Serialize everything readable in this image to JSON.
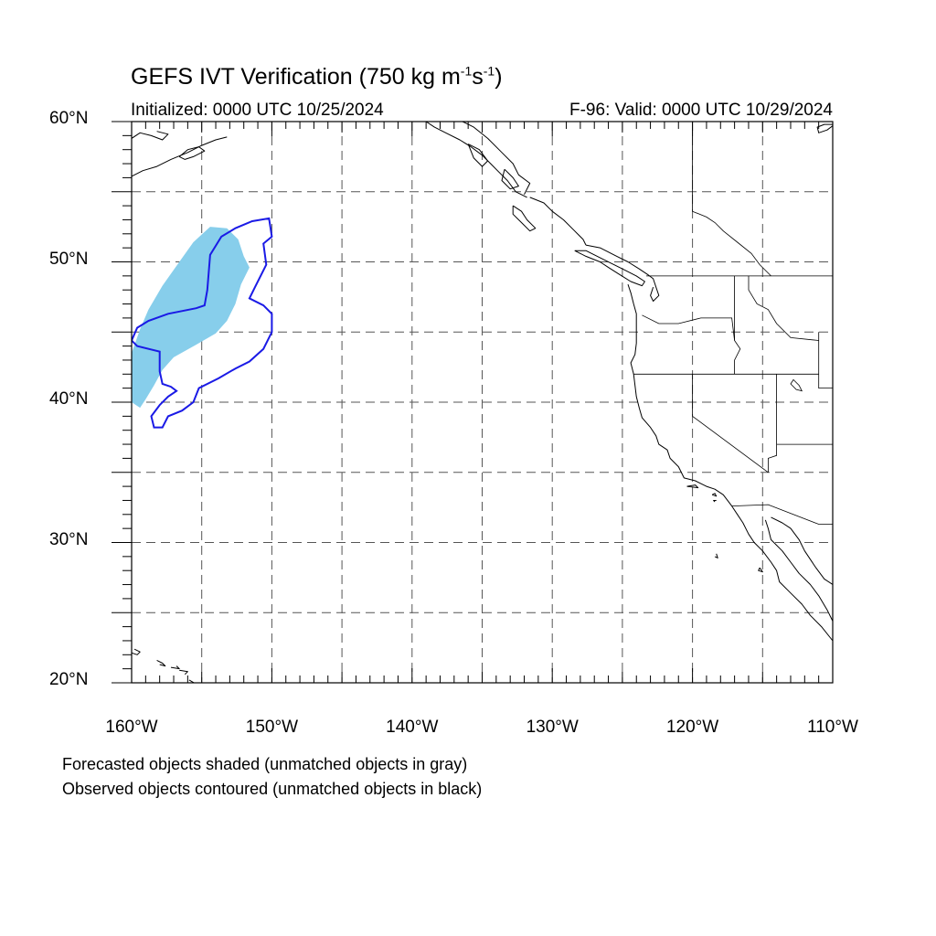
{
  "title": {
    "main": "GEFS IVT Verification (750 kg m",
    "exp1": "-1",
    "mid": "s",
    "exp2": "-1",
    "close": ")"
  },
  "subtitle_left": "Initialized: 0000 UTC 10/25/2024",
  "subtitle_right": "F-96: Valid: 0000 UTC 10/29/2024",
  "captions": [
    "Forecasted objects shaded (unmatched objects in gray)",
    "Observed objects contoured (unmatched objects in black)"
  ],
  "axes": {
    "lat_labels": [
      "60°N",
      "50°N",
      "40°N",
      "30°N",
      "20°N"
    ],
    "lon_labels": [
      "160°W",
      "150°W",
      "140°W",
      "130°W",
      "120°W",
      "110°W"
    ],
    "lat_values": [
      60,
      50,
      40,
      30,
      20
    ],
    "lon_values": [
      -160,
      -150,
      -140,
      -130,
      -120,
      -110
    ],
    "lat_range": [
      20,
      60
    ],
    "lon_range": [
      -160,
      -110
    ],
    "grid_step_deg": 5,
    "grid": "dashed"
  },
  "colors": {
    "forecast_fill": "#87ceeb",
    "observed_contour": "#1a1ae6",
    "coast": "#000000",
    "grid": "#555555"
  },
  "forecast_object": {
    "matched": true,
    "outline_lonlat": [
      [
        -154.4,
        52.5
      ],
      [
        -153.2,
        52.4
      ],
      [
        -152.4,
        51.6
      ],
      [
        -152.0,
        50.4
      ],
      [
        -151.6,
        49.6
      ],
      [
        -152.2,
        48.4
      ],
      [
        -152.6,
        47.0
      ],
      [
        -153.2,
        45.8
      ],
      [
        -154.0,
        44.9
      ],
      [
        -155.4,
        44.1
      ],
      [
        -157.0,
        43.2
      ],
      [
        -157.8,
        42.3
      ],
      [
        -158.4,
        41.2
      ],
      [
        -159.0,
        40.2
      ],
      [
        -159.4,
        39.6
      ],
      [
        -160.0,
        40.0
      ],
      [
        -160.0,
        43.5
      ],
      [
        -159.4,
        45.2
      ],
      [
        -158.8,
        46.6
      ],
      [
        -157.8,
        48.3
      ],
      [
        -156.6,
        50.0
      ],
      [
        -155.6,
        51.4
      ]
    ]
  },
  "observed_object": {
    "matched": true,
    "outline_lonlat": [
      [
        -150.2,
        53.1
      ],
      [
        -150.0,
        51.8
      ],
      [
        -150.6,
        51.3
      ],
      [
        -150.4,
        49.8
      ],
      [
        -151.2,
        48.2
      ],
      [
        -151.6,
        47.4
      ],
      [
        -150.6,
        46.9
      ],
      [
        -150.0,
        46.3
      ],
      [
        -150.0,
        45.0
      ],
      [
        -150.6,
        43.8
      ],
      [
        -151.6,
        42.9
      ],
      [
        -152.6,
        42.4
      ],
      [
        -153.8,
        41.7
      ],
      [
        -155.2,
        41.0
      ],
      [
        -155.6,
        40.0
      ],
      [
        -156.4,
        39.4
      ],
      [
        -157.4,
        39.0
      ],
      [
        -157.8,
        38.2
      ],
      [
        -158.4,
        38.2
      ],
      [
        -158.6,
        39.0
      ],
      [
        -158.0,
        39.8
      ],
      [
        -157.4,
        40.4
      ],
      [
        -156.8,
        40.8
      ],
      [
        -157.2,
        41.1
      ],
      [
        -157.8,
        41.3
      ],
      [
        -158.0,
        42.2
      ],
      [
        -158.0,
        43.6
      ],
      [
        -159.6,
        44.0
      ],
      [
        -160.0,
        44.4
      ],
      [
        -159.6,
        45.3
      ],
      [
        -158.8,
        45.8
      ],
      [
        -157.4,
        46.3
      ],
      [
        -155.4,
        46.7
      ],
      [
        -154.8,
        46.9
      ],
      [
        -154.6,
        48.0
      ],
      [
        -154.4,
        50.5
      ],
      [
        -153.6,
        51.8
      ],
      [
        -152.6,
        52.4
      ],
      [
        -151.4,
        52.9
      ]
    ]
  },
  "coastlines_lonlat": [
    [
      [
        -110,
        59.7
      ],
      [
        -110.4,
        59.4
      ],
      [
        -111.0,
        59.2
      ],
      [
        -111.1,
        59.6
      ],
      [
        -110.6,
        59.8
      ],
      [
        -110,
        59.8
      ]
    ],
    [
      [
        -160,
        58.8
      ],
      [
        -159.4,
        59.2
      ],
      [
        -158.6,
        59.0
      ],
      [
        -157.8,
        58.7
      ],
      [
        -157.4,
        59.1
      ],
      [
        -158.2,
        59.3
      ]
    ],
    [
      [
        -160,
        56.1
      ],
      [
        -159.2,
        56.5
      ],
      [
        -158.2,
        56.8
      ],
      [
        -157.2,
        57.3
      ],
      [
        -156.0,
        57.8
      ],
      [
        -155.0,
        58.3
      ],
      [
        -154.0,
        58.7
      ],
      [
        -153.2,
        58.9
      ]
    ],
    [
      [
        -156.6,
        57.5
      ],
      [
        -156.0,
        58.0
      ],
      [
        -155.2,
        58.2
      ],
      [
        -154.8,
        57.9
      ],
      [
        -155.6,
        57.5
      ],
      [
        -156.2,
        57.3
      ],
      [
        -156.6,
        57.5
      ]
    ],
    [
      [
        -139.0,
        60.0
      ],
      [
        -138.4,
        59.6
      ],
      [
        -137.6,
        59.2
      ],
      [
        -136.6,
        58.7
      ],
      [
        -135.8,
        58.2
      ],
      [
        -135.0,
        57.6
      ],
      [
        -134.4,
        57.0
      ],
      [
        -133.8,
        56.4
      ],
      [
        -133.2,
        55.8
      ],
      [
        -132.6,
        55.0
      ],
      [
        -131.8,
        54.6
      ]
    ],
    [
      [
        -136.0,
        58.4
      ],
      [
        -135.2,
        58.0
      ],
      [
        -134.6,
        57.2
      ],
      [
        -135.0,
        56.8
      ],
      [
        -135.6,
        57.4
      ],
      [
        -136.0,
        58.4
      ]
    ],
    [
      [
        -133.4,
        56.6
      ],
      [
        -132.8,
        56.0
      ],
      [
        -132.4,
        55.4
      ],
      [
        -133.0,
        55.2
      ],
      [
        -133.6,
        55.8
      ],
      [
        -133.4,
        56.6
      ]
    ],
    [
      [
        -132.0,
        54.8
      ],
      [
        -131.6,
        55.6
      ],
      [
        -132.4,
        56.2
      ],
      [
        -132.8,
        57.0
      ],
      [
        -133.6,
        57.8
      ],
      [
        -134.6,
        58.8
      ],
      [
        -135.6,
        59.6
      ],
      [
        -136.4,
        60.0
      ]
    ],
    [
      [
        -132.8,
        54.0
      ],
      [
        -132.2,
        53.6
      ],
      [
        -131.8,
        53.0
      ],
      [
        -131.2,
        52.4
      ],
      [
        -131.6,
        52.2
      ],
      [
        -132.2,
        52.8
      ],
      [
        -132.8,
        53.4
      ],
      [
        -132.8,
        54.0
      ]
    ],
    [
      [
        -131.6,
        54.6
      ],
      [
        -130.6,
        54.2
      ],
      [
        -130.0,
        53.6
      ],
      [
        -129.2,
        53.0
      ],
      [
        -128.4,
        52.2
      ],
      [
        -127.8,
        51.6
      ],
      [
        -127.6,
        51.2
      ]
    ],
    [
      [
        -128.4,
        50.8
      ],
      [
        -127.6,
        50.4
      ],
      [
        -126.6,
        50.0
      ],
      [
        -126.0,
        49.6
      ],
      [
        -125.2,
        49.1
      ],
      [
        -124.4,
        48.6
      ],
      [
        -123.6,
        48.3
      ],
      [
        -123.4,
        48.6
      ],
      [
        -124.0,
        49.0
      ],
      [
        -124.8,
        49.4
      ],
      [
        -125.6,
        49.8
      ],
      [
        -126.6,
        50.3
      ],
      [
        -127.6,
        50.8
      ],
      [
        -128.4,
        50.8
      ]
    ],
    [
      [
        -127.6,
        51.2
      ],
      [
        -126.6,
        51.0
      ],
      [
        -125.4,
        50.4
      ],
      [
        -124.6,
        50.0
      ],
      [
        -123.8,
        49.5
      ],
      [
        -123.2,
        49.1
      ],
      [
        -122.8,
        48.8
      ],
      [
        -122.6,
        48.2
      ],
      [
        -122.4,
        47.6
      ],
      [
        -122.8,
        47.2
      ],
      [
        -123.0,
        47.6
      ],
      [
        -122.8,
        48.2
      ]
    ],
    [
      [
        -124.6,
        48.4
      ],
      [
        -124.4,
        47.8
      ],
      [
        -124.2,
        47.0
      ],
      [
        -124.0,
        46.3
      ],
      [
        -124.0,
        45.4
      ],
      [
        -124.0,
        44.2
      ],
      [
        -124.1,
        43.4
      ],
      [
        -124.4,
        42.8
      ],
      [
        -124.2,
        42.0
      ],
      [
        -124.1,
        41.2
      ],
      [
        -124.0,
        40.4
      ],
      [
        -123.8,
        39.6
      ],
      [
        -123.6,
        38.9
      ],
      [
        -123.0,
        38.2
      ],
      [
        -122.6,
        37.6
      ],
      [
        -122.4,
        37.0
      ],
      [
        -121.8,
        36.6
      ],
      [
        -121.6,
        36.0
      ],
      [
        -121.0,
        35.4
      ],
      [
        -120.6,
        34.6
      ],
      [
        -119.8,
        34.4
      ],
      [
        -119.0,
        34.0
      ],
      [
        -118.4,
        33.8
      ],
      [
        -117.8,
        33.4
      ],
      [
        -117.2,
        32.6
      ],
      [
        -116.8,
        32.0
      ],
      [
        -116.4,
        31.4
      ],
      [
        -116.0,
        30.6
      ],
      [
        -115.6,
        30.0
      ],
      [
        -115.0,
        29.4
      ],
      [
        -114.4,
        28.6
      ],
      [
        -114.0,
        28.0
      ],
      [
        -113.8,
        27.2
      ],
      [
        -113.0,
        26.4
      ],
      [
        -112.2,
        25.6
      ],
      [
        -111.6,
        24.8
      ],
      [
        -110.8,
        24.0
      ],
      [
        -110.0,
        23.0
      ]
    ],
    [
      [
        -114.8,
        31.6
      ],
      [
        -114.6,
        31.0
      ],
      [
        -114.4,
        30.2
      ],
      [
        -113.6,
        29.4
      ],
      [
        -113.0,
        28.6
      ],
      [
        -112.4,
        27.8
      ],
      [
        -111.6,
        27.0
      ],
      [
        -111.0,
        26.2
      ],
      [
        -110.4,
        25.2
      ],
      [
        -110.0,
        24.4
      ]
    ],
    [
      [
        -114.4,
        31.8
      ],
      [
        -113.6,
        31.4
      ],
      [
        -113.0,
        31.0
      ],
      [
        -112.4,
        30.2
      ],
      [
        -112.0,
        29.4
      ],
      [
        -111.2,
        28.2
      ],
      [
        -110.6,
        27.4
      ],
      [
        -110.0,
        27.0
      ]
    ],
    [
      [
        -120.4,
        34.0
      ],
      [
        -119.6,
        33.9
      ],
      [
        -119.8,
        34.1
      ],
      [
        -120.4,
        34.0
      ]
    ],
    [
      [
        -118.6,
        33.4
      ],
      [
        -118.3,
        33.3
      ],
      [
        -118.4,
        33.5
      ],
      [
        -118.6,
        33.4
      ]
    ],
    [
      [
        -118.4,
        32.9
      ],
      [
        -118.5,
        33.0
      ],
      [
        -118.3,
        33.0
      ]
    ],
    [
      [
        -118.3,
        29.2
      ],
      [
        -118.2,
        28.9
      ],
      [
        -118.4,
        29.0
      ]
    ],
    [
      [
        -115.2,
        28.2
      ],
      [
        -115.0,
        27.9
      ],
      [
        -115.3,
        28.0
      ],
      [
        -115.2,
        28.2
      ]
    ],
    [
      [
        -160.2,
        22.2
      ],
      [
        -159.6,
        22.0
      ],
      [
        -159.4,
        22.2
      ],
      [
        -159.8,
        22.4
      ]
    ],
    [
      [
        -158.2,
        21.6
      ],
      [
        -157.8,
        21.4
      ],
      [
        -157.6,
        21.2
      ],
      [
        -158.0,
        21.3
      ]
    ],
    [
      [
        -157.2,
        21.1
      ],
      [
        -156.6,
        21.0
      ],
      [
        -156.8,
        21.2
      ]
    ],
    [
      [
        -156.6,
        20.9
      ],
      [
        -156.0,
        20.8
      ],
      [
        -156.2,
        20.6
      ]
    ],
    [
      [
        -155.9,
        20.2
      ],
      [
        -155.2,
        19.8
      ],
      [
        -155.0,
        19.6
      ],
      [
        -155.4,
        20.0
      ]
    ]
  ],
  "borders_lonlat": [
    [
      [
        -123.3,
        49.0
      ],
      [
        -110,
        49.0
      ]
    ],
    [
      [
        -124.2,
        42.0
      ],
      [
        -111,
        42.0
      ]
    ],
    [
      [
        -120,
        42.0
      ],
      [
        -120,
        39.0
      ],
      [
        -114.6,
        35.0
      ]
    ],
    [
      [
        -114.6,
        35.0
      ],
      [
        -114.6,
        36.0
      ],
      [
        -114.0,
        36.2
      ],
      [
        -114.0,
        42.0
      ]
    ],
    [
      [
        -117.2,
        32.6
      ],
      [
        -114.6,
        32.7
      ],
      [
        -111.0,
        31.3
      ],
      [
        -110,
        31.3
      ]
    ],
    [
      [
        -117.0,
        49.0
      ],
      [
        -117.0,
        44.4
      ],
      [
        -116.6,
        43.8
      ],
      [
        -117.0,
        43.0
      ],
      [
        -117.0,
        42.0
      ]
    ],
    [
      [
        -123.6,
        46.2
      ],
      [
        -122.4,
        45.6
      ],
      [
        -121.0,
        45.6
      ],
      [
        -119.4,
        46.0
      ],
      [
        -117.2,
        46.0
      ],
      [
        -117.0,
        44.4
      ]
    ],
    [
      [
        -116.0,
        49.0
      ],
      [
        -116.0,
        48.0
      ],
      [
        -115.4,
        47.0
      ],
      [
        -114.6,
        46.6
      ],
      [
        -114.0,
        45.6
      ],
      [
        -113.0,
        44.6
      ],
      [
        -111.0,
        44.4
      ]
    ],
    [
      [
        -111.0,
        45.0
      ],
      [
        -111.0,
        41.0
      ],
      [
        -110,
        41.0
      ]
    ],
    [
      [
        -114.0,
        37.0
      ],
      [
        -110,
        37.0
      ]
    ],
    [
      [
        -120.0,
        60.0
      ],
      [
        -120.0,
        53.6
      ],
      [
        -119.0,
        53.2
      ],
      [
        -118.4,
        52.8
      ],
      [
        -117.8,
        52.2
      ],
      [
        -116.8,
        51.4
      ],
      [
        -115.8,
        50.6
      ],
      [
        -115.2,
        49.8
      ],
      [
        -114.4,
        49.0
      ]
    ]
  ],
  "lakes_lonlat": [
    [
      [
        -112.8,
        41.6
      ],
      [
        -112.4,
        41.2
      ],
      [
        -112.2,
        40.8
      ],
      [
        -112.6,
        40.9
      ],
      [
        -113.0,
        41.3
      ],
      [
        -112.8,
        41.6
      ]
    ]
  ]
}
